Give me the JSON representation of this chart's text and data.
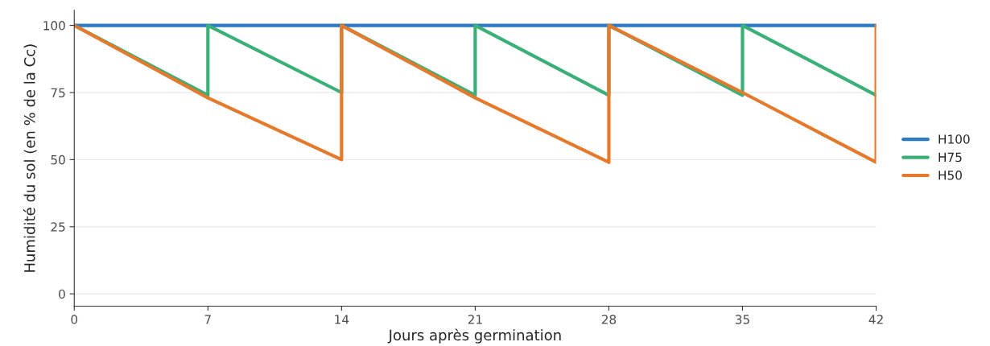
{
  "chart_data": {
    "type": "line",
    "xlabel": "Jours après germination",
    "ylabel": "Humidité du sol (en % de la Cc)",
    "xlim": [
      0,
      42
    ],
    "xticks": [
      0,
      7,
      14,
      21,
      28,
      35,
      42
    ],
    "ylim": [
      -4.6,
      105.6
    ],
    "yticks": [
      0,
      25,
      50,
      75,
      100
    ],
    "grid": "y",
    "legend": "right",
    "line_style": "solid",
    "marker": "none",
    "series": [
      {
        "name": "H100",
        "color": "#2a78c6",
        "x": [
          0,
          42
        ],
        "values": [
          100,
          100
        ]
      },
      {
        "name": "H75",
        "color": "#3aaf78",
        "x": [
          0,
          7,
          7,
          14,
          14,
          21,
          21,
          28,
          28,
          35,
          35,
          42
        ],
        "values": [
          100,
          74,
          100,
          75,
          100,
          74,
          100,
          74,
          100,
          74,
          100,
          74
        ]
      },
      {
        "name": "H50",
        "color": "#e57a2c",
        "x": [
          0,
          7,
          14,
          14,
          21,
          28,
          28,
          35,
          42,
          42
        ],
        "values": [
          100,
          73,
          50,
          100,
          73,
          49,
          100,
          75,
          49,
          100
        ]
      }
    ]
  }
}
